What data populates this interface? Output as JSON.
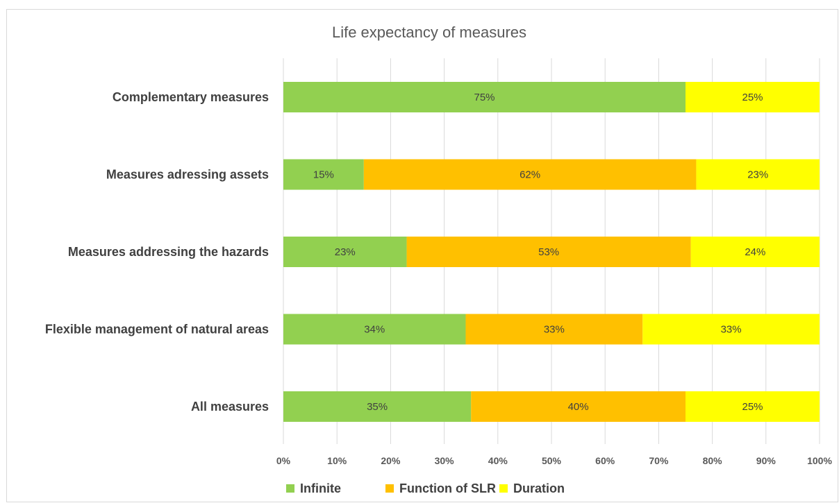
{
  "chart_data": {
    "type": "bar",
    "orientation": "horizontal",
    "stacked": true,
    "title": "Life expectancy of measures",
    "categories": [
      "Complementary measures",
      "Measures adressing assets",
      "Measures addressing the hazards",
      "Flexible management of natural areas",
      "All measures"
    ],
    "series": [
      {
        "name": "Infinite",
        "color": "#92d050",
        "values": [
          75,
          15,
          23,
          34,
          35
        ],
        "labels": [
          "75%",
          "15%",
          "23%",
          "34%",
          "35%"
        ]
      },
      {
        "name": "Function of SLR",
        "color": "#ffc000",
        "values": [
          0,
          62,
          53,
          33,
          40
        ],
        "labels": [
          "",
          "62%",
          "53%",
          "33%",
          "40%"
        ]
      },
      {
        "name": "Duration",
        "color": "#ffff00",
        "values": [
          25,
          23,
          24,
          33,
          25
        ],
        "labels": [
          "25%",
          "23%",
          "24%",
          "33%",
          "25%"
        ]
      }
    ],
    "xlim": [
      0,
      100
    ],
    "xticks": [
      0,
      10,
      20,
      30,
      40,
      50,
      60,
      70,
      80,
      90,
      100
    ],
    "xtick_labels": [
      "0%",
      "10%",
      "20%",
      "30%",
      "40%",
      "50%",
      "60%",
      "70%",
      "80%",
      "90%",
      "100%"
    ],
    "xlabel": "",
    "ylabel": "",
    "grid": true,
    "legend_position": "bottom-left"
  }
}
